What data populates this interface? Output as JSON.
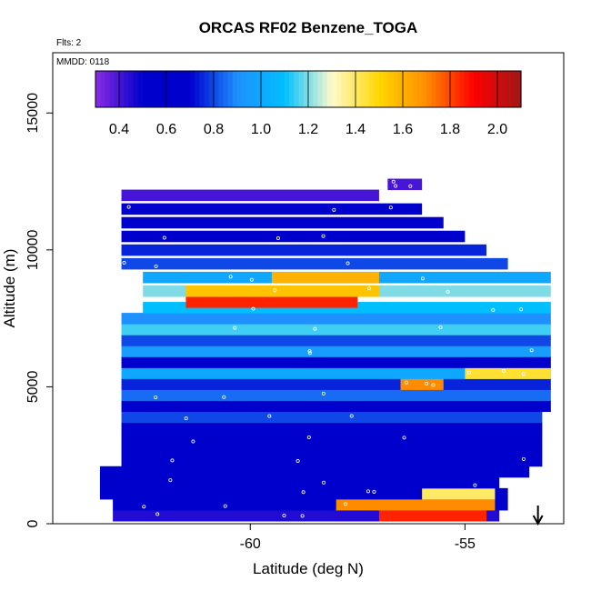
{
  "chart_data": {
    "type": "heatmap",
    "title": "ORCAS RF02 Benzene_TOGA",
    "subtitle_flights": "Flts: 2",
    "subtitle_date": "MMDD: 0118",
    "xlabel": "Latitude (deg N)",
    "ylabel": "Altitude (m)",
    "xlim": [
      -64.6,
      -52.7
    ],
    "ylim": [
      0,
      17200
    ],
    "x_ticks": [
      -60,
      -55
    ],
    "y_ticks": [
      0,
      5000,
      10000,
      15000
    ],
    "colorbar": {
      "range": [
        0.3,
        2.1
      ],
      "ticks": [
        "0.4",
        "0.6",
        "0.8",
        "1.0",
        "1.2",
        "1.4",
        "1.6",
        "1.8",
        "2.0"
      ],
      "tick_values": [
        0.4,
        0.6,
        0.8,
        1.0,
        1.2,
        1.4,
        1.6,
        1.8,
        2.0
      ],
      "placement": "top-inside",
      "colors": [
        "#8a2be2",
        "#0000cd",
        "#0000cd",
        "#1e90ff",
        "#00bfff",
        "#fffacd",
        "#ffd700",
        "#ff8c00",
        "#ff0000",
        "#a01818"
      ]
    },
    "marker_latitude": -53.3,
    "layers": [
      {
        "alt": 300,
        "lat_min": -63.2,
        "lat_max": -54.2,
        "value": 0.45
      },
      {
        "alt": 300,
        "lat_min": -57.0,
        "lat_max": -54.5,
        "value": 1.85
      },
      {
        "alt": 700,
        "lat_min": -63.2,
        "lat_max": -54.0,
        "value": 0.5
      },
      {
        "alt": 700,
        "lat_min": -58.0,
        "lat_max": -54.3,
        "value": 1.7
      },
      {
        "alt": 1100,
        "lat_min": -63.5,
        "lat_max": -54.0,
        "value": 0.55
      },
      {
        "alt": 1100,
        "lat_min": -56.0,
        "lat_max": -54.3,
        "value": 1.4
      },
      {
        "alt": 1500,
        "lat_min": -63.5,
        "lat_max": -54.2,
        "value": 0.5
      },
      {
        "alt": 1900,
        "lat_min": -63.5,
        "lat_max": -53.5,
        "value": 0.55
      },
      {
        "alt": 2300,
        "lat_min": -63.0,
        "lat_max": -53.2,
        "value": 0.65
      },
      {
        "alt": 2700,
        "lat_min": -63.0,
        "lat_max": -53.2,
        "value": 0.5
      },
      {
        "alt": 3100,
        "lat_min": -63.0,
        "lat_max": -53.2,
        "value": 0.7
      },
      {
        "alt": 3500,
        "lat_min": -63.0,
        "lat_max": -53.2,
        "value": 0.55
      },
      {
        "alt": 3900,
        "lat_min": -63.0,
        "lat_max": -53.2,
        "value": 0.8
      },
      {
        "alt": 4300,
        "lat_min": -63.0,
        "lat_max": -53.0,
        "value": 0.6
      },
      {
        "alt": 4700,
        "lat_min": -63.0,
        "lat_max": -53.0,
        "value": 0.85
      },
      {
        "alt": 5100,
        "lat_min": -63.0,
        "lat_max": -53.0,
        "value": 0.75
      },
      {
        "alt": 5100,
        "lat_min": -56.5,
        "lat_max": -55.5,
        "value": 1.7
      },
      {
        "alt": 5500,
        "lat_min": -63.0,
        "lat_max": -53.0,
        "value": 1.0
      },
      {
        "alt": 5500,
        "lat_min": -55.0,
        "lat_max": -53.0,
        "value": 1.45
      },
      {
        "alt": 5900,
        "lat_min": -63.0,
        "lat_max": -53.0,
        "value": 0.7
      },
      {
        "alt": 6300,
        "lat_min": -63.0,
        "lat_max": -53.0,
        "value": 0.95
      },
      {
        "alt": 6700,
        "lat_min": -63.0,
        "lat_max": -53.0,
        "value": 0.8
      },
      {
        "alt": 7100,
        "lat_min": -63.0,
        "lat_max": -53.0,
        "value": 1.15
      },
      {
        "alt": 7500,
        "lat_min": -63.0,
        "lat_max": -53.0,
        "value": 0.9
      },
      {
        "alt": 7900,
        "lat_min": -62.5,
        "lat_max": -53.0,
        "value": 1.1
      },
      {
        "alt": 8100,
        "lat_min": -61.5,
        "lat_max": -57.5,
        "value": 1.85
      },
      {
        "alt": 8500,
        "lat_min": -62.5,
        "lat_max": -53.0,
        "value": 1.2
      },
      {
        "alt": 8500,
        "lat_min": -61.5,
        "lat_max": -57.0,
        "value": 1.55
      },
      {
        "alt": 9000,
        "lat_min": -62.5,
        "lat_max": -53.0,
        "value": 1.0
      },
      {
        "alt": 9000,
        "lat_min": -59.5,
        "lat_max": -57.0,
        "value": 1.6
      },
      {
        "alt": 9500,
        "lat_min": -63.0,
        "lat_max": -54.0,
        "value": 0.8
      },
      {
        "alt": 10000,
        "lat_min": -63.0,
        "lat_max": -54.5,
        "value": 0.75
      },
      {
        "alt": 10500,
        "lat_min": -63.0,
        "lat_max": -55.0,
        "value": 0.65
      },
      {
        "alt": 11000,
        "lat_min": -63.0,
        "lat_max": -55.5,
        "value": 0.6
      },
      {
        "alt": 11500,
        "lat_min": -63.0,
        "lat_max": -56.0,
        "value": 0.5
      },
      {
        "alt": 12000,
        "lat_min": -63.0,
        "lat_max": -57.0,
        "value": 0.4
      },
      {
        "alt": 12400,
        "lat_min": -56.8,
        "lat_max": -56.0,
        "value": 0.4
      }
    ]
  }
}
